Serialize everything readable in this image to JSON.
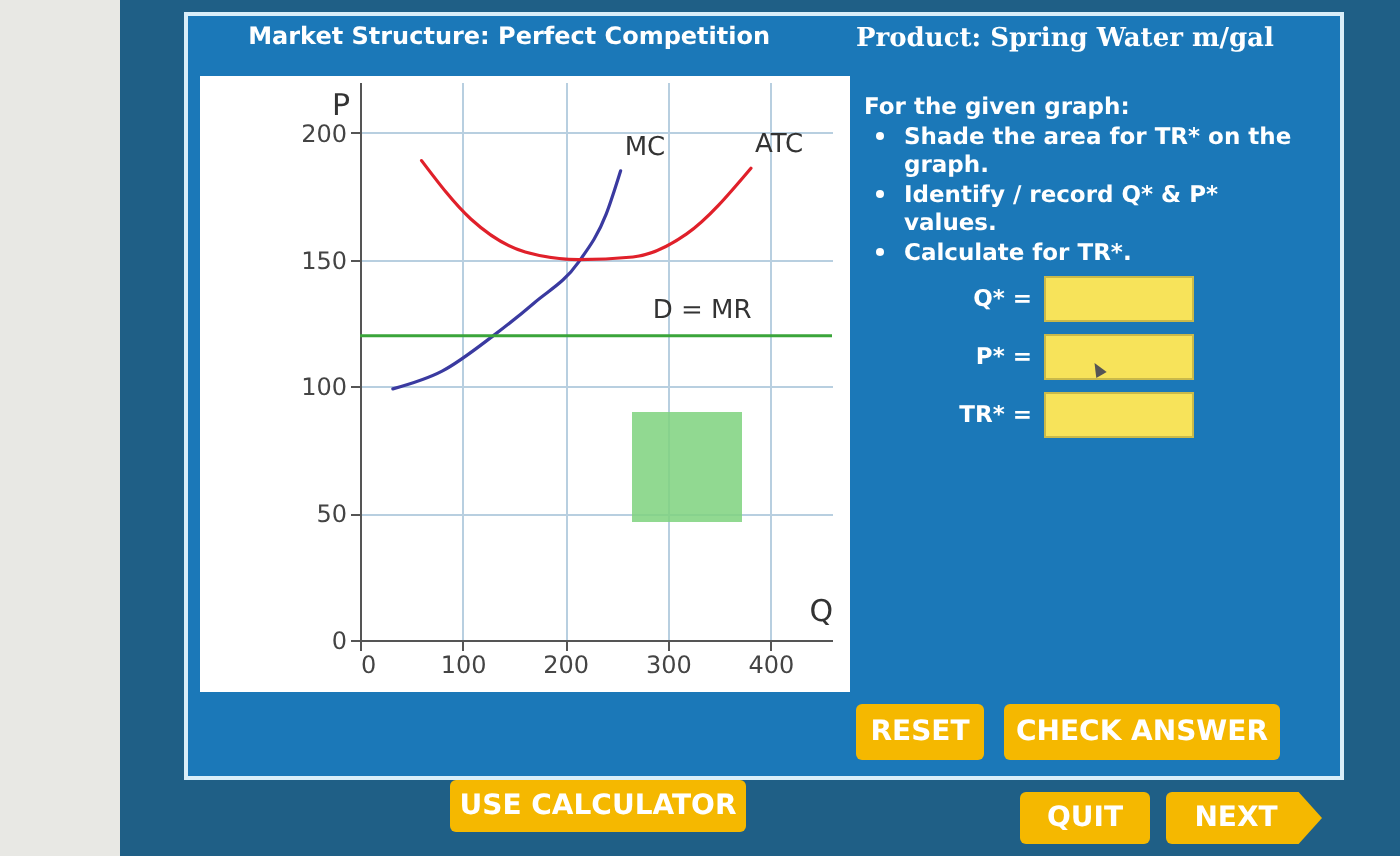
{
  "chart_data": [
    {
      "type": "line",
      "title": "Market Structure: Perfect Competition",
      "xlabel": "Q",
      "ylabel": "P",
      "series": [
        {
          "name": "MC",
          "color": "#3a3aa0",
          "x": [
            32,
            80,
            130,
            170,
            213,
            240,
            254
          ],
          "values": [
            99,
            106,
            120,
            133,
            149,
            168,
            185
          ]
        },
        {
          "name": "ATC",
          "color": "#e0202a",
          "x": [
            60,
            108,
            161,
            213,
            266,
            318,
            381
          ],
          "values": [
            189,
            166,
            153,
            150,
            151,
            160,
            186
          ]
        }
      ],
      "ref_lines": [
        {
          "axis": "y",
          "value": 120,
          "label": "D = MR",
          "color": "#3aa53a"
        }
      ],
      "xlim": [
        0,
        460
      ],
      "ylim": [
        0,
        220
      ],
      "xticks": [
        0,
        100,
        200,
        300,
        400
      ],
      "yticks": [
        0,
        50,
        100,
        150,
        200
      ],
      "grid": true
    },
    {
      "type": "other",
      "title": "Product: Spring Water m/gal",
      "annotations": [
        "For the given graph:",
        "Shade the area for TR* on the graph.",
        "Identify / record  Q* & P* values.",
        "Calculate for TR*.",
        "Q* =",
        "P* =",
        "TR* =",
        "RESET",
        "CHECK ANSWER",
        "USE CALCULATOR",
        "QUIT",
        "NEXT"
      ]
    }
  ]
}
